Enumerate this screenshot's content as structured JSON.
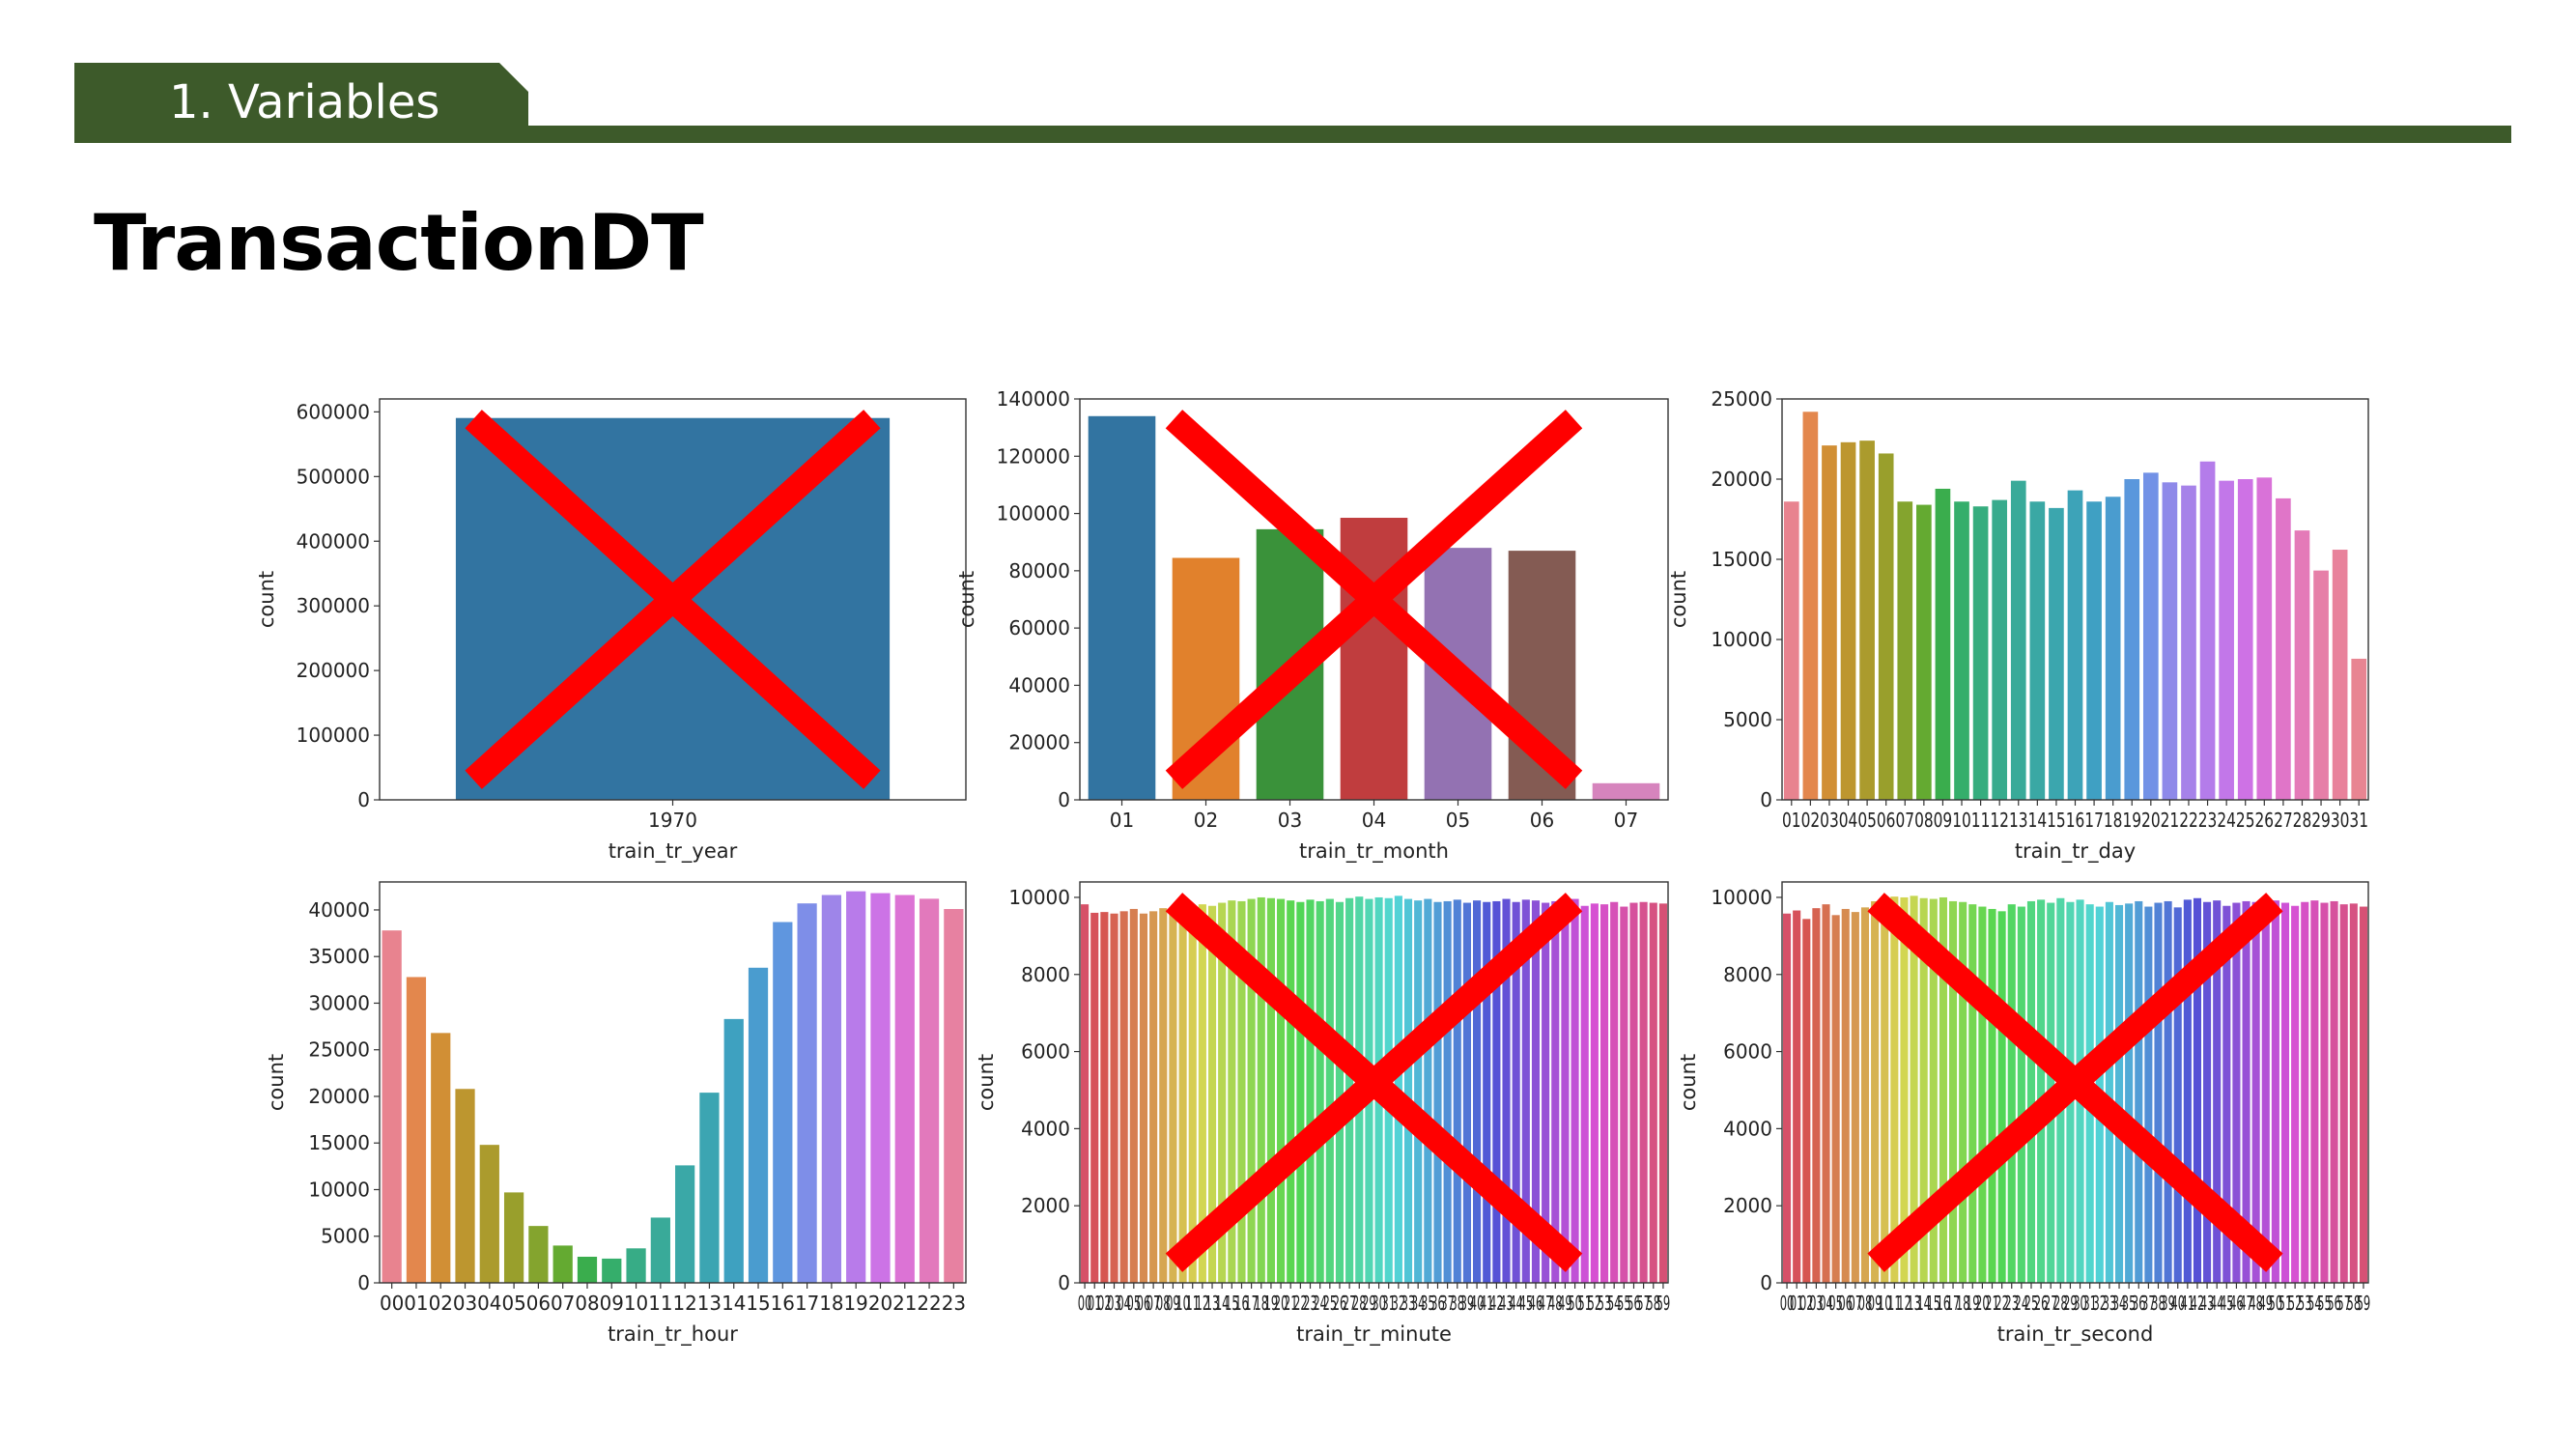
{
  "section": {
    "label": "1. Variables"
  },
  "page": {
    "title": "TransactionDT"
  },
  "colors": {
    "header": "#3d5a2a",
    "cross": "#ff0000"
  },
  "chart_data": [
    {
      "type": "bar",
      "xlabel": "train_tr_year",
      "ylabel": "count",
      "ylim": [
        0,
        620000
      ],
      "yticks": [
        0,
        100000,
        200000,
        300000,
        400000,
        500000,
        600000
      ],
      "categories": [
        "1970"
      ],
      "values": [
        590540
      ],
      "colors": [
        "#3274a1"
      ],
      "crossed_out": true
    },
    {
      "type": "bar",
      "xlabel": "train_tr_month",
      "ylabel": "count",
      "ylim": [
        0,
        140000
      ],
      "yticks": [
        0,
        20000,
        40000,
        60000,
        80000,
        100000,
        120000,
        140000
      ],
      "categories": [
        "01",
        "02",
        "03",
        "04",
        "05",
        "06",
        "07"
      ],
      "values": [
        134000,
        84500,
        94500,
        98500,
        88000,
        87000,
        5800
      ],
      "colors": [
        "#3274a1",
        "#e1812c",
        "#3a923a",
        "#c03d3e",
        "#9372b2",
        "#845b53",
        "#d684bd"
      ],
      "crossed_out": true
    },
    {
      "type": "bar",
      "xlabel": "train_tr_day",
      "ylabel": "count",
      "ylim": [
        0,
        25000
      ],
      "yticks": [
        0,
        5000,
        10000,
        15000,
        20000,
        25000
      ],
      "categories": [
        "01",
        "02",
        "03",
        "04",
        "05",
        "06",
        "07",
        "08",
        "09",
        "10",
        "11",
        "12",
        "13",
        "14",
        "15",
        "16",
        "17",
        "18",
        "19",
        "20",
        "21",
        "22",
        "23",
        "24",
        "25",
        "26",
        "27",
        "28",
        "29",
        "30",
        "31"
      ],
      "values": [
        18600,
        24200,
        22100,
        22300,
        22400,
        21600,
        18600,
        18400,
        19400,
        18600,
        18300,
        18700,
        19900,
        18600,
        18200,
        19300,
        18600,
        18900,
        20000,
        20400,
        19800,
        19600,
        21100,
        19900,
        20000,
        20100,
        18800,
        16800,
        14300,
        15600,
        8800
      ],
      "colors": [
        "#e8838f",
        "#e3874d",
        "#d18f35",
        "#bd962f",
        "#ab9b2d",
        "#999f2c",
        "#84a42e",
        "#64aa31",
        "#3aad4d",
        "#35ae6b",
        "#36ad7e",
        "#38ab8d",
        "#39aa99",
        "#3aa8a4",
        "#3ba6ae",
        "#3da3b8",
        "#3fa0c3",
        "#4a9ccf",
        "#5a97dc",
        "#7291e6",
        "#8e89e9",
        "#a682e9",
        "#b47cea",
        "#c277e9",
        "#ce72e5",
        "#d972d8",
        "#e075c8",
        "#e47ab8",
        "#e67fa8",
        "#e8829b",
        "#e88592"
      ],
      "crossed_out": false
    },
    {
      "type": "bar",
      "xlabel": "train_tr_hour",
      "ylabel": "count",
      "ylim": [
        0,
        43000
      ],
      "yticks": [
        0,
        5000,
        10000,
        15000,
        20000,
        25000,
        30000,
        35000,
        40000
      ],
      "categories": [
        "00",
        "01",
        "02",
        "03",
        "04",
        "05",
        "06",
        "07",
        "08",
        "09",
        "10",
        "11",
        "12",
        "13",
        "14",
        "15",
        "16",
        "17",
        "18",
        "19",
        "20",
        "21",
        "22",
        "23"
      ],
      "values": [
        37800,
        32800,
        26800,
        20800,
        14800,
        9700,
        6100,
        4000,
        2800,
        2600,
        3700,
        7000,
        12600,
        20400,
        28300,
        33800,
        38700,
        40700,
        41600,
        42000,
        41800,
        41600,
        41200,
        40100
      ],
      "colors": [
        "#e8838f",
        "#e3874d",
        "#d18f35",
        "#bd962f",
        "#ab9b2d",
        "#999f2c",
        "#84a42e",
        "#64aa31",
        "#3aad4d",
        "#35ae6b",
        "#37ac86",
        "#39aa99",
        "#3aa8a7",
        "#3ca5b2",
        "#3ea1c0",
        "#4a9ccf",
        "#5f96df",
        "#7e8ee8",
        "#9e85e9",
        "#b87bea",
        "#cc73e6",
        "#dc73d5",
        "#e279bc",
        "#e781a1"
      ],
      "crossed_out": false
    },
    {
      "type": "bar",
      "xlabel": "train_tr_minute",
      "ylabel": "count",
      "ylim": [
        0,
        10400
      ],
      "yticks": [
        0,
        2000,
        4000,
        6000,
        8000,
        10000
      ],
      "categories": [
        "00",
        "01",
        "02",
        "03",
        "04",
        "05",
        "06",
        "07",
        "08",
        "09",
        "10",
        "11",
        "12",
        "13",
        "14",
        "15",
        "16",
        "17",
        "18",
        "19",
        "20",
        "21",
        "22",
        "23",
        "24",
        "25",
        "26",
        "27",
        "28",
        "29",
        "30",
        "31",
        "32",
        "33",
        "34",
        "35",
        "36",
        "37",
        "38",
        "39",
        "40",
        "41",
        "42",
        "43",
        "44",
        "45",
        "46",
        "47",
        "48",
        "49",
        "50",
        "51",
        "52",
        "53",
        "54",
        "55",
        "56",
        "57",
        "58",
        "59"
      ],
      "values": [
        9820,
        9600,
        9620,
        9580,
        9640,
        9700,
        9580,
        9640,
        9720,
        9600,
        9760,
        9700,
        9820,
        9780,
        9860,
        9920,
        9900,
        9960,
        10000,
        9980,
        9960,
        9920,
        9880,
        9940,
        9900,
        9960,
        9880,
        9980,
        10020,
        9960,
        10000,
        9980,
        10040,
        9960,
        9920,
        9960,
        9880,
        9900,
        9940,
        9860,
        9920,
        9880,
        9900,
        9960,
        9880,
        9940,
        9920,
        9860,
        9900,
        9840,
        9960,
        9780,
        9840,
        9820,
        9880,
        9760,
        9860,
        9880,
        9860,
        9840
      ],
      "colors": [],
      "crossed_out": true
    },
    {
      "type": "bar",
      "xlabel": "train_tr_second",
      "ylabel": "count",
      "ylim": [
        0,
        10400
      ],
      "yticks": [
        0,
        2000,
        4000,
        6000,
        8000,
        10000
      ],
      "categories": [
        "00",
        "01",
        "02",
        "03",
        "04",
        "05",
        "06",
        "07",
        "08",
        "09",
        "10",
        "11",
        "12",
        "13",
        "14",
        "15",
        "16",
        "17",
        "18",
        "19",
        "20",
        "21",
        "22",
        "23",
        "24",
        "25",
        "26",
        "27",
        "28",
        "29",
        "30",
        "31",
        "32",
        "33",
        "34",
        "35",
        "36",
        "37",
        "38",
        "39",
        "40",
        "41",
        "42",
        "43",
        "44",
        "45",
        "46",
        "47",
        "48",
        "49",
        "50",
        "51",
        "52",
        "53",
        "54",
        "55",
        "56",
        "57",
        "58",
        "59"
      ],
      "values": [
        9580,
        9660,
        9440,
        9720,
        9820,
        9540,
        9700,
        9620,
        9740,
        9900,
        9960,
        10020,
        10000,
        10040,
        9980,
        9960,
        10000,
        9900,
        9880,
        9820,
        9760,
        9700,
        9640,
        9820,
        9760,
        9900,
        9940,
        9860,
        9980,
        9880,
        9940,
        9820,
        9760,
        9880,
        9800,
        9840,
        9900,
        9760,
        9860,
        9900,
        9740,
        9940,
        9980,
        9880,
        9920,
        9780,
        9860,
        9900,
        9880,
        9780,
        9920,
        9860,
        9780,
        9880,
        9920,
        9860,
        9900,
        9820,
        9840,
        9760
      ],
      "colors": [],
      "crossed_out": true
    }
  ]
}
